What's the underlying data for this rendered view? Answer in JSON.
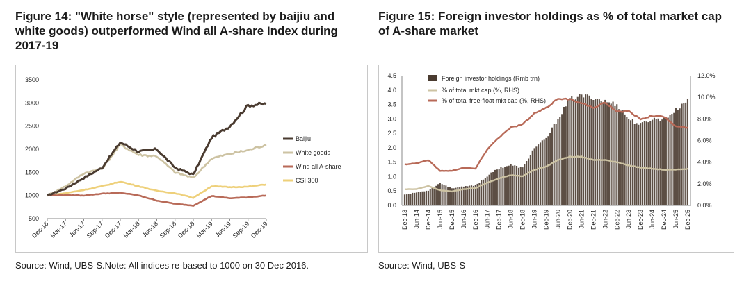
{
  "figures": [
    {
      "title": "Figure 14: \"White horse\" style (represented by baijiu and white goods) outperformed Wind all A-share Index during 2017-19",
      "source": "Source: Wind, UBS-S.Note: All indices re-based to 1000 on 30 Dec 2016."
    },
    {
      "title": "Figure 15: Foreign investor holdings as % of total market cap of A-share market",
      "source": "Source: Wind, UBS-S"
    }
  ],
  "chart_data": [
    {
      "type": "line",
      "title": "",
      "xlabel": "",
      "ylabel": "",
      "x": [
        "Dec-16",
        "Mar-17",
        "Jun-17",
        "Sep-17",
        "Dec-17",
        "Mar-18",
        "Jun-18",
        "Sep-18",
        "Dec-18",
        "Mar-19",
        "Jun-19",
        "Sep-19",
        "Dec-19"
      ],
      "ylim": [
        500,
        3500
      ],
      "yticks": [
        500,
        1000,
        1500,
        2000,
        2500,
        3000,
        3500
      ],
      "grid": false,
      "legend_position": "right",
      "series": [
        {
          "name": "Baijiu",
          "color": "#4a3b30",
          "values": [
            1000,
            1150,
            1380,
            1600,
            2150,
            1950,
            2000,
            1600,
            1450,
            2250,
            2500,
            2950,
            2980
          ]
        },
        {
          "name": "White goods",
          "color": "#cdc3a3",
          "values": [
            1000,
            1200,
            1480,
            1580,
            2100,
            1880,
            1850,
            1500,
            1380,
            1800,
            1900,
            1980,
            2100
          ]
        },
        {
          "name": "Wind all A-share",
          "color": "#b86a58",
          "values": [
            1000,
            1010,
            1000,
            1040,
            1060,
            1000,
            890,
            820,
            780,
            990,
            940,
            960,
            1000
          ]
        },
        {
          "name": "CSI 300",
          "color": "#eed07a",
          "values": [
            1000,
            1050,
            1120,
            1200,
            1300,
            1200,
            1100,
            1050,
            950,
            1200,
            1180,
            1190,
            1240
          ]
        }
      ]
    },
    {
      "type": "bar+line",
      "title": "",
      "xlabel": "",
      "ylabel": "",
      "x": [
        "Dec-13",
        "Jun-14",
        "Dec-14",
        "Jun-15",
        "Dec-15",
        "Jun-16",
        "Dec-16",
        "Jun-17",
        "Dec-17",
        "Jun-18",
        "Dec-18",
        "Jun-19",
        "Dec-19",
        "Jun-20",
        "Dec-20",
        "Jun-21",
        "Dec-21",
        "Jun-22",
        "Dec-22",
        "Jun-23",
        "Dec-23",
        "Jun-24",
        "Dec-24",
        "Jun-25",
        "Dec-25"
      ],
      "ylim_left": [
        0,
        4.5
      ],
      "yticks_left": [
        0.0,
        0.5,
        1.0,
        1.5,
        2.0,
        2.5,
        3.0,
        3.5,
        4.0,
        4.5
      ],
      "ylim_right": [
        0,
        12
      ],
      "yticks_right": [
        "0.0%",
        "2.0%",
        "4.0%",
        "6.0%",
        "8.0%",
        "10.0%",
        "12.0%"
      ],
      "grid": false,
      "legend_position": "top-left",
      "series": [
        {
          "name": "Foreign investor holdings (Rmb trn)",
          "axis": "left",
          "kind": "bar",
          "color": "#4a3b30",
          "values": [
            0.38,
            0.45,
            0.52,
            0.78,
            0.6,
            0.65,
            0.7,
            1.02,
            1.3,
            1.4,
            1.3,
            2.0,
            2.3,
            3.0,
            3.7,
            3.8,
            3.75,
            3.6,
            3.5,
            3.0,
            2.8,
            3.0,
            3.0,
            3.3,
            3.7
          ]
        },
        {
          "name": "% of total mkt cap (%, RHS)",
          "axis": "right",
          "kind": "line",
          "color": "#cdc3a3",
          "values": [
            1.5,
            1.5,
            1.8,
            1.4,
            1.3,
            1.5,
            1.6,
            2.1,
            2.5,
            2.8,
            2.7,
            3.3,
            3.6,
            4.2,
            4.5,
            4.5,
            4.2,
            4.2,
            4.0,
            3.7,
            3.5,
            3.4,
            3.3,
            3.3,
            3.4
          ]
        },
        {
          "name": "% of total free-float mkt cap (%, RHS)",
          "axis": "right",
          "kind": "line",
          "color": "#b86a58",
          "values": [
            3.8,
            3.9,
            4.2,
            3.2,
            3.2,
            3.5,
            3.4,
            5.2,
            6.3,
            7.2,
            7.5,
            8.5,
            9.0,
            9.9,
            9.8,
            9.5,
            9.0,
            9.5,
            8.7,
            8.7,
            8.0,
            8.3,
            8.2,
            7.3,
            7.2
          ]
        }
      ]
    }
  ]
}
